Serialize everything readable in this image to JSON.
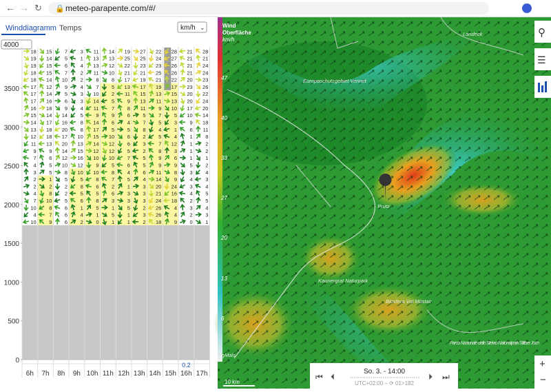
{
  "browser": {
    "url": "meteo-parapente.com/#/"
  },
  "panel": {
    "tabs": [
      "Winddiagramm",
      "Temps"
    ],
    "unit": "km/h",
    "altitude_select": "4000",
    "yticks": [
      0,
      500,
      1000,
      1500,
      2000,
      2500,
      3000,
      3500
    ],
    "hours": [
      "6h",
      "7h",
      "8h",
      "9h",
      "10h",
      "11h",
      "12h",
      "13h",
      "14h",
      "15h",
      "16h",
      "17h"
    ],
    "hour_note": "0.2",
    "grid": [
      [
        18,
        15,
        7,
        3,
        11,
        14,
        19,
        27,
        22,
        28,
        21,
        28
      ],
      [
        19,
        14,
        5,
        1,
        13,
        13,
        25,
        25,
        24,
        27,
        21,
        21
      ],
      [
        19,
        15,
        6,
        4,
        13,
        12,
        22,
        23,
        23,
        26,
        21,
        24
      ],
      [
        18,
        15,
        7,
        2,
        11,
        10,
        21,
        21,
        25,
        26,
        21,
        24
      ],
      [
        18,
        14,
        10,
        2,
        8,
        8,
        17,
        19,
        21,
        22,
        20,
        23
      ],
      [
        17,
        12,
        9,
        4,
        7,
        5,
        13,
        17,
        19,
        17,
        23,
        26
      ],
      [
        17,
        14,
        5,
        3,
        10,
        2,
        11,
        15,
        13,
        15,
        20,
        22
      ],
      [
        17,
        16,
        6,
        3,
        14,
        5,
        9,
        13,
        11,
        13,
        20,
        24
      ],
      [
        16,
        18,
        9,
        4,
        11,
        7,
        8,
        11,
        9,
        10,
        17,
        20
      ],
      [
        15,
        14,
        14,
        5,
        9,
        9,
        6,
        5,
        7,
        5,
        10,
        14
      ],
      [
        14,
        17,
        16,
        8,
        14,
        6,
        4,
        7,
        5,
        3,
        9,
        18
      ],
      [
        13,
        18,
        20,
        8,
        17,
        5,
        5,
        8,
        4,
        1,
        6,
        11
      ],
      [
        12,
        18,
        17,
        10,
        15,
        10,
        6,
        2,
        5,
        4,
        1,
        8
      ],
      [
        11,
        13,
        20,
        13,
        14,
        12,
        6,
        3,
        7,
        12,
        1,
        2
      ],
      [
        9,
        9,
        14,
        15,
        12,
        12,
        5,
        2,
        8,
        3,
        1,
        2
      ],
      [
        7,
        6,
        12,
        16,
        10,
        10,
        7,
        5,
        9,
        6,
        1,
        1
      ],
      [
        4,
        5,
        10,
        12,
        9,
        5,
        6,
        5,
        9,
        9,
        5,
        2
      ],
      [
        3,
        5,
        8,
        10,
        10,
        8,
        4,
        6,
        11,
        8,
        3,
        4
      ],
      [
        2,
        1,
        5,
        5,
        8,
        7,
        5,
        4,
        14,
        9,
        4,
        3
      ],
      [
        2,
        2,
        2,
        8,
        6,
        2,
        1,
        3,
        20,
        24,
        3,
        4
      ],
      [
        4,
        8,
        2,
        5,
        5,
        6,
        3,
        3,
        21,
        16,
        4,
        5
      ],
      [
        7,
        10,
        5,
        6,
        8,
        3,
        3,
        3,
        24,
        18,
        2,
        5
      ],
      [
        10,
        8,
        6,
        1,
        5,
        1,
        5,
        2,
        26,
        4,
        3,
        4
      ],
      [
        4,
        7,
        6,
        4,
        1,
        5,
        1,
        3,
        26,
        4,
        2,
        3
      ],
      [
        10,
        9,
        6,
        2,
        0,
        1,
        1,
        2,
        18,
        9,
        0,
        1
      ]
    ]
  },
  "map": {
    "legend_title": "Wind",
    "legend_subtitle": "Oberfläche",
    "legend_unit": "km/h",
    "scale": [
      47,
      40,
      33,
      27,
      20,
      13,
      6,
      0
    ],
    "labels": [
      "Landeck",
      "Europaschutzgebiet Vennet",
      "Prutz",
      "Kaunergrat Naturpark",
      "Biosfera Val Müstair",
      "Parco Nazionale dello Stelvio Nationalpark Stilfser Joch",
      "Mals"
    ],
    "scale_bar": "10 km",
    "time": "So. 3. - 14:00",
    "timezone": "UTC+02:00 – ⟳ 01>182"
  }
}
